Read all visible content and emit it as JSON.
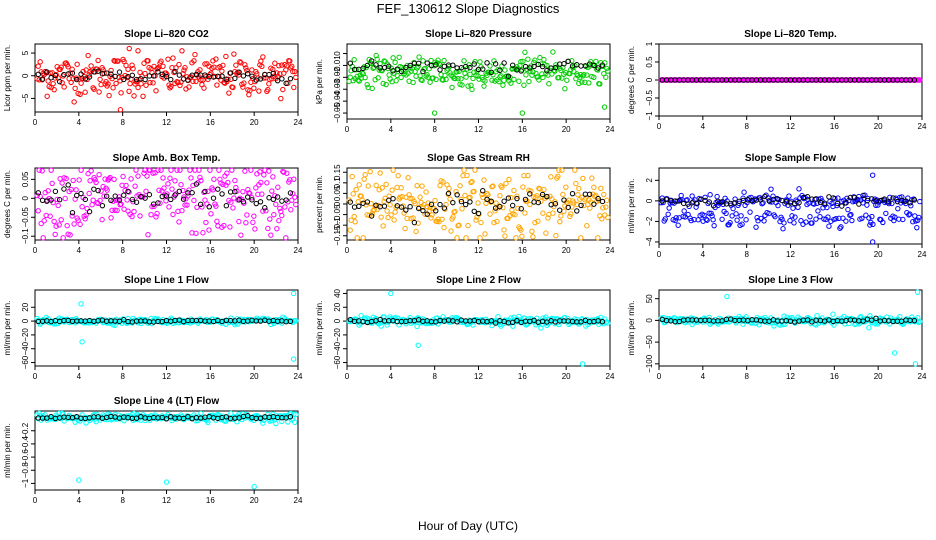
{
  "figure": {
    "title": "FEF_130612  Slope Diagnostics",
    "xlabel": "Hour of Day (UTC)"
  },
  "chart_data": [
    {
      "type": "scatter",
      "title": "Slope Li–820 CO2",
      "ylabel": "Licor ppm per min.",
      "xlim": [
        0,
        24
      ],
      "ylim": [
        -8,
        7
      ],
      "xticks": [
        0,
        4,
        8,
        12,
        16,
        20,
        24
      ],
      "yticks": [
        -5,
        0,
        5
      ],
      "color": "#ff0000",
      "baseline": 0,
      "spread": 2.2,
      "outliers": [
        {
          "x": 7.8,
          "y": -7.5
        },
        {
          "x": 8.6,
          "y": 6.0
        },
        {
          "x": 9.4,
          "y": 5.5
        }
      ]
    },
    {
      "type": "scatter",
      "title": "Slope Li–820 Pressure",
      "ylabel": "kPa per min.",
      "xlim": [
        0,
        24
      ],
      "ylim": [
        -0.055,
        0.008
      ],
      "xticks": [
        0,
        4,
        8,
        12,
        16,
        20,
        24
      ],
      "yticks": [
        0.0,
        -0.01,
        -0.02,
        -0.03,
        -0.04,
        -0.05
      ],
      "color": "#00cc00",
      "baseline": -0.012,
      "spread": 0.007,
      "outliers": [
        {
          "x": 8,
          "y": -0.05
        },
        {
          "x": 16,
          "y": -0.05
        },
        {
          "x": 23.5,
          "y": -0.045
        }
      ]
    },
    {
      "type": "scatter",
      "title": "Slope Li–820 Temp.",
      "ylabel": "degrees C per min.",
      "xlim": [
        0,
        24
      ],
      "ylim": [
        -1.0,
        1.0
      ],
      "xticks": [
        0,
        4,
        8,
        12,
        16,
        20,
        24
      ],
      "yticks": [
        1.0,
        0.5,
        0.0,
        -0.5,
        -1.0
      ],
      "color": "#ff00ff",
      "baseline": 0,
      "spread": 0.0,
      "outliers": []
    },
    {
      "type": "scatter",
      "title": "Slope Amb. Box Temp.",
      "ylabel": "degrees C per min.",
      "xlim": [
        0,
        24
      ],
      "ylim": [
        -0.11,
        0.08
      ],
      "xticks": [
        0,
        4,
        8,
        12,
        16,
        20,
        24
      ],
      "yticks": [
        0.05,
        0.0,
        -0.05,
        -0.1
      ],
      "color": "#ff00ff",
      "baseline": 0,
      "spread": 0.05,
      "outliers": []
    },
    {
      "type": "scatter",
      "title": "Slope Gas Stream RH",
      "ylabel": "percent per min.",
      "xlim": [
        0,
        24
      ],
      "ylim": [
        -0.17,
        0.17
      ],
      "xticks": [
        0,
        4,
        8,
        12,
        16,
        20,
        24
      ],
      "yticks": [
        0.15,
        0.1,
        0.05,
        0.0,
        -0.05,
        -0.1,
        -0.15
      ],
      "color": "#ffa500",
      "baseline": 0,
      "spread": 0.08,
      "outliers": []
    },
    {
      "type": "scatter",
      "title": "Slope Sample Flow",
      "ylabel": "ml/min per min.",
      "xlim": [
        0,
        24
      ],
      "ylim": [
        -4.2,
        3.2
      ],
      "xticks": [
        0,
        4,
        8,
        12,
        16,
        20,
        24
      ],
      "yticks": [
        2,
        0,
        -2,
        -4
      ],
      "color": "#0000ff",
      "baseline": 0,
      "spread": 0.6,
      "outliers": [
        {
          "x": 19.5,
          "y": 2.5
        },
        {
          "x": 19.5,
          "y": -4.0
        }
      ]
    },
    {
      "type": "scatter",
      "title": "Slope Line 1 Flow",
      "ylabel": "ml/min per min.",
      "xlim": [
        0,
        24
      ],
      "ylim": [
        -65,
        45
      ],
      "xticks": [
        0,
        4,
        8,
        12,
        16,
        20,
        24
      ],
      "yticks": [
        20,
        0,
        -20,
        -40,
        -60
      ],
      "color": "#00ffff",
      "baseline": 0,
      "spread": 2,
      "outliers": [
        {
          "x": 23.6,
          "y": 40
        },
        {
          "x": 23.6,
          "y": -55
        },
        {
          "x": 4.2,
          "y": 25
        },
        {
          "x": 4.3,
          "y": -30
        }
      ]
    },
    {
      "type": "scatter",
      "title": "Slope Line 2 Flow",
      "ylabel": "ml/min per min.",
      "xlim": [
        0,
        24
      ],
      "ylim": [
        -65,
        45
      ],
      "xticks": [
        0,
        4,
        8,
        12,
        16,
        20,
        24
      ],
      "yticks": [
        40,
        20,
        0,
        -20,
        -40,
        -60
      ],
      "color": "#00ffff",
      "baseline": 0,
      "spread": 3,
      "outliers": [
        {
          "x": 4,
          "y": 40
        },
        {
          "x": 21.5,
          "y": -62
        },
        {
          "x": 6.5,
          "y": -35
        }
      ]
    },
    {
      "type": "scatter",
      "title": "Slope Line 3 Flow",
      "ylabel": "ml/min per min.",
      "xlim": [
        0,
        24
      ],
      "ylim": [
        -105,
        70
      ],
      "xticks": [
        0,
        4,
        8,
        12,
        16,
        20,
        24
      ],
      "yticks": [
        50,
        0,
        -50,
        -100
      ],
      "color": "#00ffff",
      "baseline": 0,
      "spread": 5,
      "outliers": [
        {
          "x": 23.6,
          "y": 65
        },
        {
          "x": 23.4,
          "y": -100
        },
        {
          "x": 21.5,
          "y": -75
        },
        {
          "x": 6.2,
          "y": 55
        }
      ]
    },
    {
      "type": "scatter",
      "title": "Slope Line 4 (LT) Flow",
      "ylabel": "ml/min per min.",
      "xlim": [
        0,
        24
      ],
      "ylim": [
        -1.1,
        0.1
      ],
      "xticks": [
        0,
        4,
        8,
        12,
        16,
        20,
        24
      ],
      "yticks": [
        -0.2,
        -0.4,
        -0.6,
        -0.8,
        -1.0
      ],
      "color": "#00ffff",
      "baseline": 0,
      "spread": 0.03,
      "outliers": [
        {
          "x": 4,
          "y": -0.95
        },
        {
          "x": 12,
          "y": -0.98
        },
        {
          "x": 20,
          "y": -1.05
        }
      ]
    }
  ]
}
